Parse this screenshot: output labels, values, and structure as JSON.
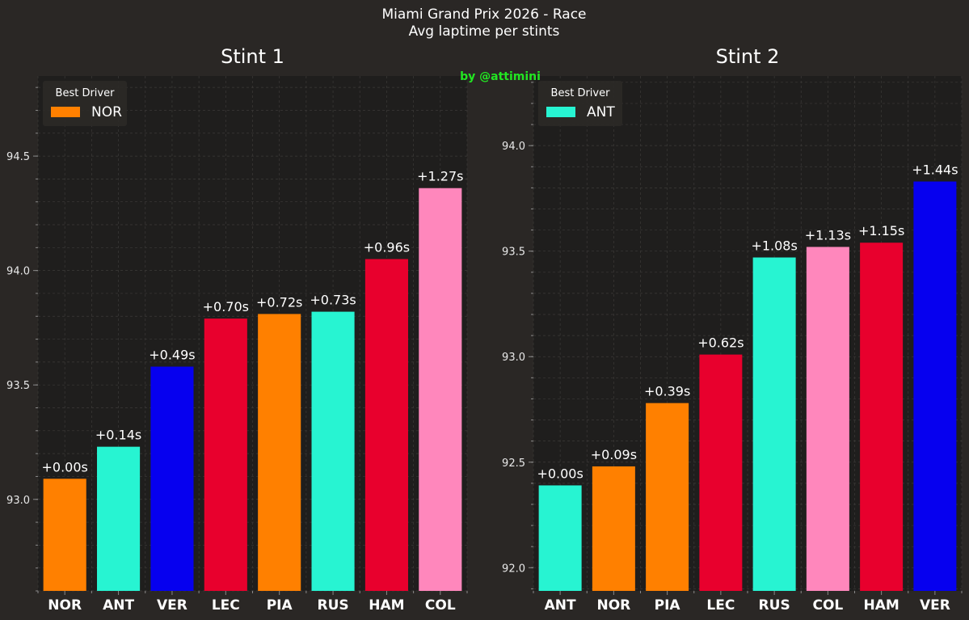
{
  "header": {
    "title_line1": "Miami Grand Prix 2026 - Race",
    "title_line2": "Avg laptime per stints",
    "credit": "by @attimini"
  },
  "colors": {
    "figure_bg": "#2a2725",
    "axes_bg": "#1f1e1d",
    "grid": "#3c3a38",
    "axis_line": "#8a8a8a",
    "credit": "#22e622"
  },
  "chart_data": [
    {
      "type": "bar",
      "title": "Stint 1",
      "xlabel": "",
      "ylabel": "",
      "ylim": [
        92.6,
        94.85
      ],
      "yticks": [
        93.0,
        93.5,
        94.0,
        94.5
      ],
      "ytick_labels": [
        "93.0",
        "93.5",
        "94.0",
        "94.5"
      ],
      "grid": true,
      "legend_position": "top-left",
      "legend": {
        "title": "Best Driver",
        "label": "NOR",
        "color": "#ff8000"
      },
      "categories": [
        "NOR",
        "ANT",
        "VER",
        "LEC",
        "PIA",
        "RUS",
        "HAM",
        "COL"
      ],
      "values": [
        93.09,
        93.23,
        93.58,
        93.79,
        93.81,
        93.82,
        94.05,
        94.36
      ],
      "labels": [
        "+0.00s",
        "+0.14s",
        "+0.49s",
        "+0.70s",
        "+0.72s",
        "+0.73s",
        "+0.96s",
        "+1.27s"
      ],
      "colors": [
        "#ff8000",
        "#27f4d2",
        "#0600ef",
        "#e8002d",
        "#ff8000",
        "#27f4d2",
        "#e8002d",
        "#ff87bc"
      ]
    },
    {
      "type": "bar",
      "title": "Stint 2",
      "xlabel": "",
      "ylabel": "",
      "ylim": [
        91.89,
        94.33
      ],
      "yticks": [
        92.0,
        92.5,
        93.0,
        93.5,
        94.0
      ],
      "ytick_labels": [
        "92.0",
        "92.5",
        "93.0",
        "93.5",
        "94.0"
      ],
      "grid": true,
      "legend_position": "top-left",
      "legend": {
        "title": "Best Driver",
        "label": "ANT",
        "color": "#27f4d2"
      },
      "categories": [
        "ANT",
        "NOR",
        "PIA",
        "LEC",
        "RUS",
        "COL",
        "HAM",
        "VER"
      ],
      "values": [
        92.39,
        92.48,
        92.78,
        93.01,
        93.47,
        93.52,
        93.54,
        93.83
      ],
      "labels": [
        "+0.00s",
        "+0.09s",
        "+0.39s",
        "+0.62s",
        "+1.08s",
        "+1.13s",
        "+1.15s",
        "+1.44s"
      ],
      "colors": [
        "#27f4d2",
        "#ff8000",
        "#ff8000",
        "#e8002d",
        "#27f4d2",
        "#ff87bc",
        "#e8002d",
        "#0600ef"
      ]
    }
  ]
}
